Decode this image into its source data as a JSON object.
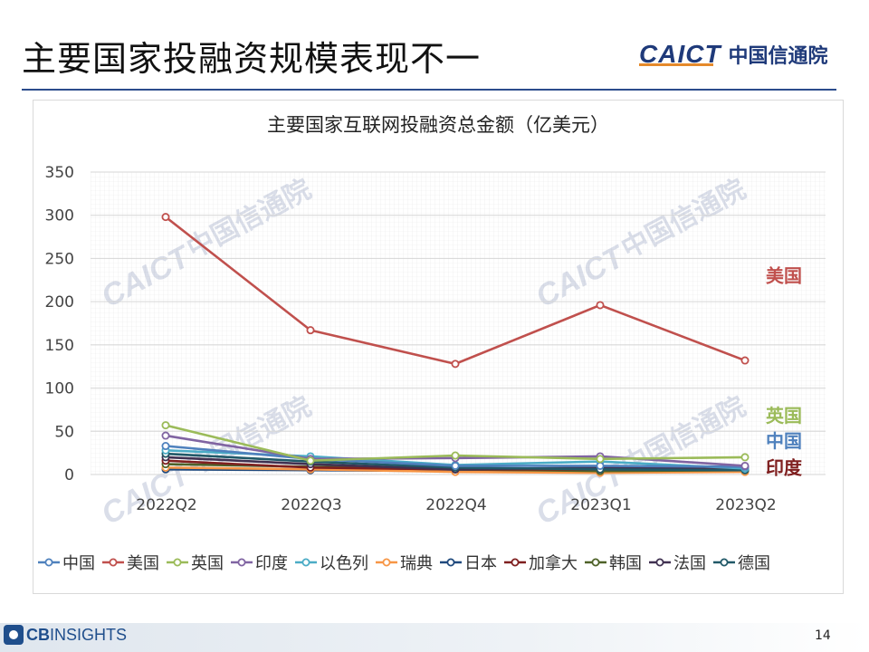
{
  "slide": {
    "title": "主要国家投融资规模表现不一",
    "page_number": "14"
  },
  "logo": {
    "en": "CAICT",
    "cn": "中国信通院"
  },
  "footer_logo": {
    "prefix": "CB",
    "suffix": "INSIGHTS"
  },
  "watermark": {
    "en": "CAICT",
    "cn": "中国信通院"
  },
  "chart_data": {
    "type": "line",
    "title": "主要国家互联网投融资总金额（亿美元）",
    "xlabel": "",
    "ylabel": "",
    "categories": [
      "2022Q2",
      "2022Q3",
      "2022Q4",
      "2023Q1",
      "2023Q2"
    ],
    "ylim": [
      0,
      350
    ],
    "yticks": [
      0,
      50,
      100,
      150,
      200,
      250,
      300,
      350
    ],
    "grid": true,
    "legend_position": "bottom",
    "series": [
      {
        "name": "中国",
        "color": "#4f81bd",
        "values": [
          33,
          18,
          10,
          10,
          9
        ]
      },
      {
        "name": "美国",
        "color": "#c0504d",
        "values": [
          298,
          167,
          128,
          196,
          132
        ]
      },
      {
        "name": "英国",
        "color": "#9bbb59",
        "values": [
          57,
          16,
          22,
          18,
          20
        ]
      },
      {
        "name": "印度",
        "color": "#8064a2",
        "values": [
          45,
          18,
          19,
          21,
          10
        ]
      },
      {
        "name": "以色列",
        "color": "#4bacc6",
        "values": [
          28,
          21,
          11,
          15,
          7
        ]
      },
      {
        "name": "瑞典",
        "color": "#f79646",
        "values": [
          8,
          6,
          3,
          2,
          3
        ]
      },
      {
        "name": "日本",
        "color": "#1f497d",
        "values": [
          6,
          5,
          4,
          5,
          4
        ]
      },
      {
        "name": "加拿大",
        "color": "#7f1f1f",
        "values": [
          16,
          8,
          6,
          6,
          6
        ]
      },
      {
        "name": "韩国",
        "color": "#4f6228",
        "values": [
          12,
          9,
          6,
          4,
          5
        ]
      },
      {
        "name": "法国",
        "color": "#403151",
        "values": [
          20,
          12,
          6,
          8,
          8
        ]
      },
      {
        "name": "德国",
        "color": "#215968",
        "values": [
          24,
          15,
          8,
          6,
          5
        ]
      }
    ],
    "annotations": [
      {
        "text": "美国",
        "color": "#c0504d",
        "y": 230
      },
      {
        "text": "英国",
        "color": "#9bbb59",
        "y": 68
      },
      {
        "text": "中国",
        "color": "#4f81bd",
        "y": 39
      },
      {
        "text": "印度",
        "color": "#7f1f1f",
        "y": 8
      }
    ]
  }
}
